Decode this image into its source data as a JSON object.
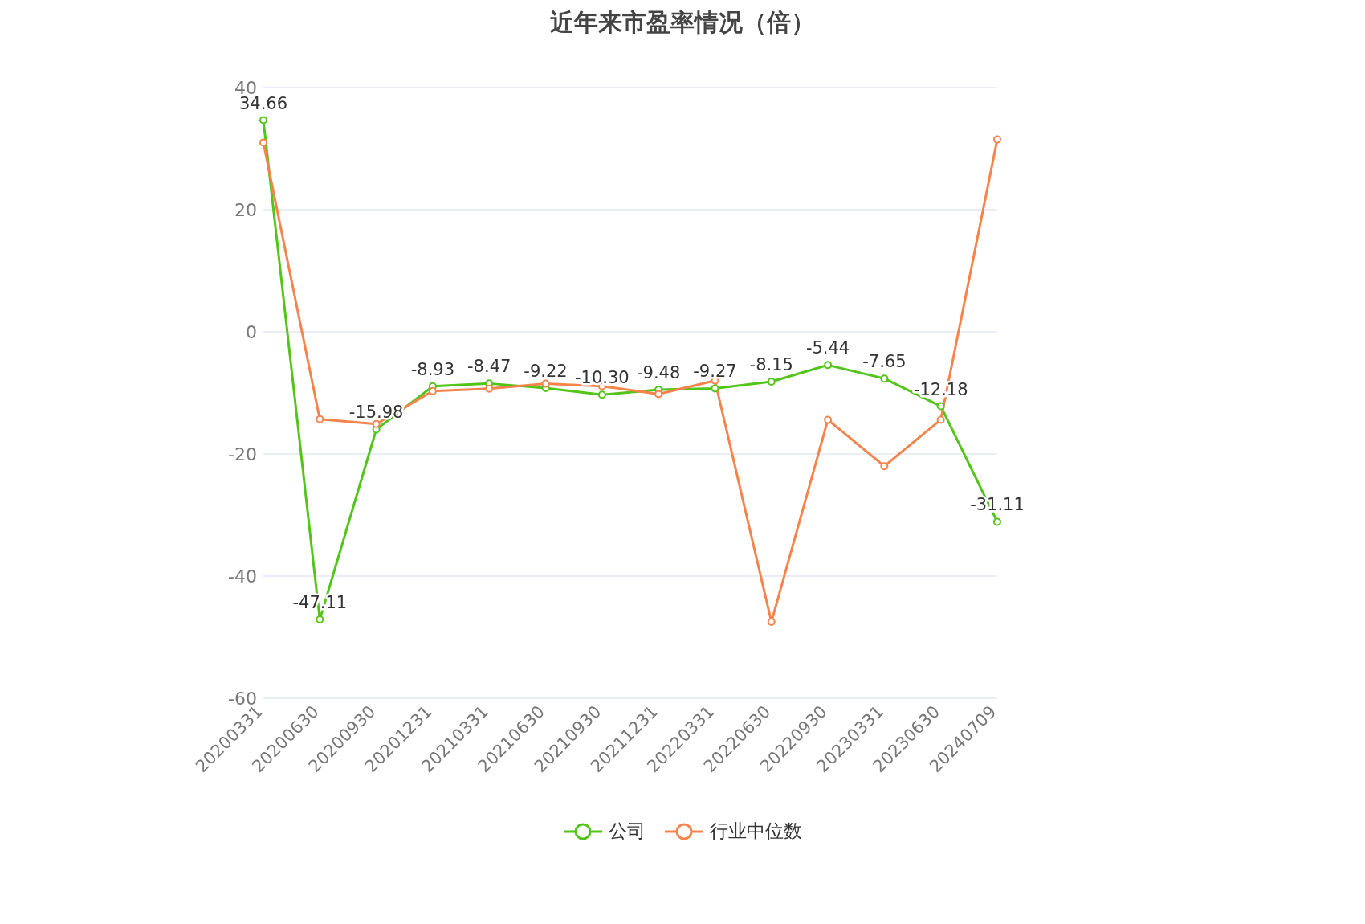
{
  "chart_data": {
    "type": "line",
    "title": "近年来市盈率情况（倍）",
    "categories": [
      "20200331",
      "20200630",
      "20200930",
      "20201231",
      "20210331",
      "20210630",
      "20210930",
      "20211231",
      "20220331",
      "20220630",
      "20220930",
      "20230331",
      "20230630",
      "20240709"
    ],
    "series": [
      {
        "name": "公司",
        "color": "#52c41a",
        "values": [
          34.66,
          -47.11,
          -15.98,
          -8.93,
          -8.47,
          -9.22,
          -10.3,
          -9.48,
          -9.27,
          -8.15,
          -5.44,
          -7.65,
          -12.18,
          -31.11
        ],
        "value_labels": [
          "34.66",
          "-47.11",
          "-15.98",
          "-8.93",
          "-8.47",
          "-9.22",
          "-10.30",
          "-9.48",
          "-9.27",
          "-8.15",
          "-5.44",
          "-7.65",
          "-12.18",
          "-31.11"
        ]
      },
      {
        "name": "行业中位数",
        "color": "#f5844c",
        "values": [
          31.0,
          -14.3,
          -15.1,
          -9.7,
          -9.3,
          -8.5,
          -8.9,
          -10.2,
          -8.0,
          -47.5,
          -14.4,
          -22.0,
          -14.4,
          31.5
        ]
      }
    ],
    "ylim": [
      -60,
      40
    ],
    "yticks": [
      -60,
      -40,
      -20,
      0,
      20,
      40
    ],
    "grid": "y",
    "legend": "bottom",
    "marker": "circle",
    "line_style": "solid"
  }
}
